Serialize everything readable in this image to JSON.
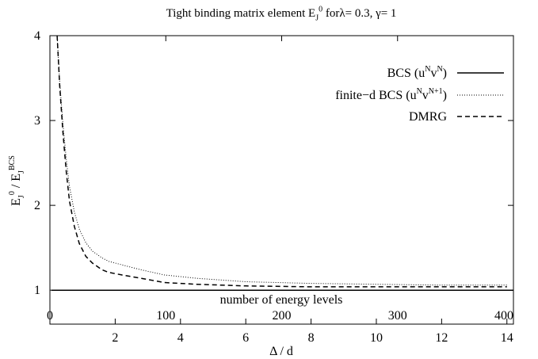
{
  "chart_data": {
    "type": "line",
    "title": {
      "parts": [
        {
          "t": "Tight binding matrix element E"
        },
        {
          "t": "J",
          "sub": true
        },
        {
          "t": "0",
          "sup": true
        },
        {
          "t": " forλ= 0.3, γ= 1"
        }
      ]
    },
    "ylabel": {
      "parts": [
        {
          "t": "E"
        },
        {
          "t": "J",
          "sub": true
        },
        {
          "t": "0",
          "sup": true
        },
        {
          "t": " / E"
        },
        {
          "t": "J",
          "sub": true
        },
        {
          "t": "BCS",
          "sup": true
        }
      ]
    },
    "xlabel": "Δ / d",
    "x2label": "number of energy levels",
    "xlim": [
      0,
      14.2
    ],
    "ylim": [
      0.6,
      4
    ],
    "x2lim": [
      0,
      400
    ],
    "xticks": [
      {
        "v": 2,
        "label": "2"
      },
      {
        "v": 4,
        "label": "4"
      },
      {
        "v": 6,
        "label": "6"
      },
      {
        "v": 8,
        "label": "8"
      },
      {
        "v": 10,
        "label": "10"
      },
      {
        "v": 12,
        "label": "12"
      },
      {
        "v": 14,
        "label": "14"
      }
    ],
    "x2ticks": [
      {
        "v": 0,
        "label": "0"
      },
      {
        "v": 100,
        "label": "100"
      },
      {
        "v": 200,
        "label": "200"
      },
      {
        "v": 300,
        "label": "300"
      },
      {
        "v": 400,
        "label": "400"
      }
    ],
    "yticks": [
      {
        "v": 1,
        "label": "1"
      },
      {
        "v": 2,
        "label": "2"
      },
      {
        "v": 3,
        "label": "3"
      },
      {
        "v": 4,
        "label": "4"
      }
    ],
    "legend_position": "top-right",
    "series": [
      {
        "name_parts": [
          {
            "t": "BCS (u"
          },
          {
            "t": "N",
            "sup": true
          },
          {
            "t": "v"
          },
          {
            "t": "N",
            "sup": true
          },
          {
            "t": ")"
          }
        ],
        "style": "solid",
        "x": [
          0.05,
          14.2
        ],
        "y": [
          1.0,
          1.0
        ]
      },
      {
        "name_parts": [
          {
            "t": "finite−d BCS (u"
          },
          {
            "t": "N",
            "sup": true
          },
          {
            "t": "v"
          },
          {
            "t": "N+1",
            "sup": true
          },
          {
            "t": ")"
          }
        ],
        "style": "dotted",
        "x": [
          0.22,
          0.3,
          0.4,
          0.5,
          0.6,
          0.75,
          0.9,
          1.1,
          1.3,
          1.6,
          1.8,
          2.2,
          2.8,
          3.5,
          4.5,
          6,
          8,
          10,
          12,
          14
        ],
        "y": [
          4.0,
          3.45,
          2.95,
          2.55,
          2.22,
          1.92,
          1.72,
          1.56,
          1.46,
          1.38,
          1.34,
          1.3,
          1.24,
          1.18,
          1.14,
          1.1,
          1.08,
          1.07,
          1.06,
          1.06
        ]
      },
      {
        "name_parts": [
          {
            "t": "DMRG"
          }
        ],
        "style": "dashed",
        "x": [
          0.22,
          0.3,
          0.4,
          0.5,
          0.6,
          0.75,
          0.9,
          1.1,
          1.3,
          1.6,
          1.8,
          2.2,
          2.8,
          3.5,
          4.5,
          6,
          8,
          10,
          12,
          14
        ],
        "y": [
          4.0,
          3.4,
          2.85,
          2.4,
          2.05,
          1.75,
          1.55,
          1.4,
          1.32,
          1.24,
          1.21,
          1.18,
          1.14,
          1.09,
          1.07,
          1.05,
          1.04,
          1.04,
          1.04,
          1.04
        ]
      }
    ]
  }
}
